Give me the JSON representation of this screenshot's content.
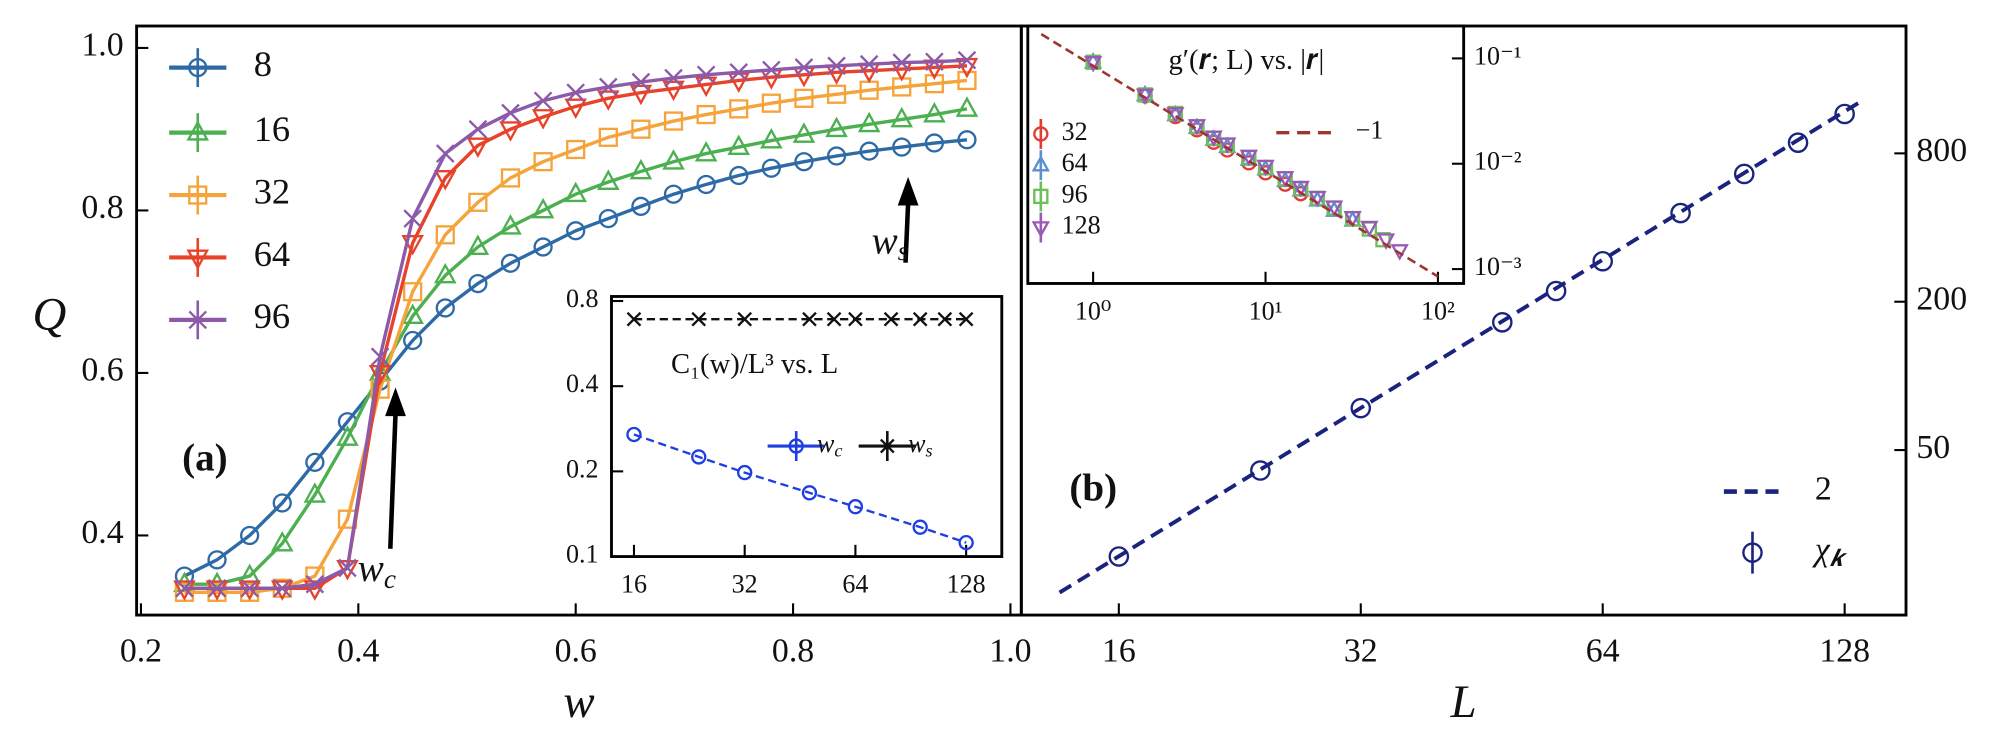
{
  "chart_data": [
    {
      "type": "line",
      "xlabel": "w",
      "ylabel": "Q",
      "xlim": [
        0.196,
        1.01
      ],
      "ylim": [
        0.302,
        1.027
      ],
      "xscale": "linear",
      "yscale": "linear",
      "yaxis": "left",
      "xticks": [
        0.2,
        0.4,
        0.6,
        0.8,
        {
          "value": 1,
          "label": "1.0"
        }
      ],
      "yticks": [
        0.4,
        0.6,
        0.8,
        {
          "value": 1,
          "label": "1.0"
        }
      ],
      "legend": "upper left",
      "x": [
        0.24,
        0.27,
        0.3,
        0.33,
        0.36,
        0.39,
        0.42,
        0.45,
        0.48,
        0.51,
        0.54,
        0.57,
        0.6,
        0.63,
        0.66,
        0.69,
        0.72,
        0.75,
        0.78,
        0.81,
        0.84,
        0.87,
        0.9,
        0.93,
        0.96
      ],
      "series": [
        {
          "name": "8",
          "color": "#2e6aa6",
          "marker": "o",
          "line": "solid",
          "values": [
            0.35,
            0.37,
            0.4,
            0.44,
            0.49,
            0.54,
            0.59,
            0.64,
            0.68,
            0.71,
            0.735,
            0.755,
            0.775,
            0.79,
            0.805,
            0.82,
            0.832,
            0.843,
            0.852,
            0.86,
            0.867,
            0.873,
            0.878,
            0.883,
            0.887
          ]
        },
        {
          "name": "16",
          "color": "#4caf50",
          "marker": "^",
          "line": "solid",
          "values": [
            0.34,
            0.34,
            0.35,
            0.39,
            0.45,
            0.52,
            0.6,
            0.67,
            0.72,
            0.755,
            0.78,
            0.8,
            0.82,
            0.835,
            0.848,
            0.86,
            0.87,
            0.878,
            0.886,
            0.893,
            0.9,
            0.906,
            0.912,
            0.918,
            0.925
          ]
        },
        {
          "name": "32",
          "color": "#f5a43c",
          "marker": "s",
          "line": "solid",
          "values": [
            0.33,
            0.33,
            0.33,
            0.335,
            0.35,
            0.42,
            0.58,
            0.7,
            0.77,
            0.81,
            0.84,
            0.86,
            0.875,
            0.89,
            0.9,
            0.91,
            0.918,
            0.925,
            0.932,
            0.938,
            0.943,
            0.948,
            0.952,
            0.956,
            0.96
          ]
        },
        {
          "name": "64",
          "color": "#e8432a",
          "marker": "v",
          "line": "solid",
          "values": [
            0.335,
            0.335,
            0.335,
            0.335,
            0.335,
            0.36,
            0.6,
            0.76,
            0.84,
            0.88,
            0.9,
            0.915,
            0.928,
            0.938,
            0.945,
            0.95,
            0.955,
            0.96,
            0.964,
            0.967,
            0.97,
            0.972,
            0.974,
            0.976,
            0.978
          ]
        },
        {
          "name": "96",
          "color": "#8c5aa8",
          "marker": "x",
          "line": "solid",
          "values": [
            0.335,
            0.335,
            0.335,
            0.335,
            0.34,
            0.36,
            0.62,
            0.79,
            0.87,
            0.9,
            0.92,
            0.935,
            0.945,
            0.952,
            0.958,
            0.963,
            0.967,
            0.97,
            0.973,
            0.976,
            0.978,
            0.98,
            0.982,
            0.983,
            0.985
          ]
        }
      ],
      "annotations": [
        {
          "text": "(a)"
        },
        {
          "base": "w",
          "sub": "c"
        },
        {
          "base": "w",
          "sub": "s"
        }
      ]
    },
    {
      "type": "line",
      "title": "C₁(w)/L³ vs. L",
      "xlim": [
        13.9,
        160
      ],
      "ylim": [
        0.1,
        0.83
      ],
      "xscale": "log",
      "yscale": "log",
      "yaxis": "left",
      "xticks": [
        16,
        32,
        64,
        128
      ],
      "yticks": [
        0.1,
        0.2,
        0.4,
        0.8
      ],
      "legend": "center",
      "series": [
        {
          "name": {
            "base": "w",
            "sub": "c"
          },
          "color": "#1f3fe0",
          "marker": "o",
          "line": "dashed",
          "x": [
            16,
            24,
            32,
            48,
            64,
            96,
            128
          ],
          "values": [
            0.27,
            0.225,
            0.198,
            0.168,
            0.15,
            0.127,
            0.112
          ]
        },
        {
          "name": {
            "base": "w",
            "sub": "s"
          },
          "color": "#111111",
          "marker": "x",
          "line": "dashed",
          "x": [
            16,
            24,
            32,
            48,
            56,
            64,
            80,
            96,
            112,
            128
          ],
          "values": [
            0.69,
            0.69,
            0.69,
            0.69,
            0.69,
            0.69,
            0.69,
            0.69,
            0.69,
            0.69
          ]
        }
      ]
    },
    {
      "type": "line",
      "xlabel": "L",
      "xlim": [
        12.1,
        152.6
      ],
      "ylim": [
        10.7,
        2630
      ],
      "xscale": "log",
      "yscale": "log",
      "yaxis": "right",
      "xticks": [
        16,
        32,
        64,
        128
      ],
      "yticks": [
        50,
        200,
        800
      ],
      "legend": "lower right",
      "series": [
        {
          "name": "2",
          "color": "#1a237e",
          "marker": "none",
          "line": "dashed",
          "x": [
            13.5,
            135
          ],
          "values": [
            13.2,
            1317
          ]
        },
        {
          "name": {
            "base": "χ",
            "sub": "𝒌"
          },
          "color": "#1a237e",
          "marker": "o",
          "line": "none",
          "x": [
            16,
            24,
            32,
            48,
            56,
            64,
            80,
            96,
            112,
            128
          ],
          "values": [
            18.5,
            41.3,
            74,
            165,
            221,
            292,
            458,
            660,
            884,
            1156
          ]
        }
      ],
      "annotations": [
        {
          "text": "(b)"
        }
      ]
    },
    {
      "type": "line",
      "title": "g′(𝒓; L) vs. |𝒓|",
      "xlim": [
        0.418,
        141
      ],
      "ylim": [
        0.00073,
        0.203
      ],
      "xscale": "log",
      "yscale": "log",
      "yaxis": "right",
      "xticks": [
        {
          "value": 1,
          "label": "10⁰"
        },
        {
          "value": 10,
          "label": "10¹"
        },
        {
          "value": 100,
          "label": "10²"
        }
      ],
      "yticks": [
        {
          "value": 0.001,
          "label": "10⁻³"
        },
        {
          "value": 0.01,
          "label": "10⁻²"
        },
        {
          "value": 0.1,
          "label": "10⁻¹"
        }
      ],
      "legend": "center left",
      "series": [
        {
          "name": "32",
          "color": "#e03c32",
          "marker": "o",
          "line": "none",
          "x": [
            1,
            2,
            3,
            4,
            5,
            6,
            8,
            10,
            13,
            16
          ],
          "values": [
            0.092,
            0.044,
            0.028,
            0.021,
            0.016,
            0.0135,
            0.0102,
            0.0082,
            0.0064,
            0.0052
          ]
        },
        {
          "name": "64",
          "color": "#5b8fd0",
          "marker": "^",
          "line": "none",
          "x": [
            1,
            2,
            3,
            4,
            5,
            6,
            8,
            10,
            13,
            16,
            20,
            25,
            32
          ],
          "values": [
            0.092,
            0.045,
            0.029,
            0.022,
            0.017,
            0.0145,
            0.011,
            0.0089,
            0.0069,
            0.0056,
            0.0045,
            0.0036,
            0.0029
          ]
        },
        {
          "name": "96",
          "color": "#6cbf5a",
          "marker": "s",
          "line": "none",
          "x": [
            1,
            2,
            3,
            4,
            5,
            6,
            8,
            10,
            13,
            16,
            20,
            25,
            32,
            40,
            48
          ],
          "values": [
            0.092,
            0.045,
            0.03,
            0.0225,
            0.0175,
            0.015,
            0.0115,
            0.0092,
            0.0072,
            0.0058,
            0.0047,
            0.0038,
            0.003,
            0.0024,
            0.0019
          ]
        },
        {
          "name": "128",
          "color": "#9b59b6",
          "marker": "v",
          "line": "none",
          "x": [
            1,
            2,
            3,
            4,
            5,
            6,
            8,
            10,
            13,
            16,
            20,
            25,
            32,
            40,
            50,
            60
          ],
          "values": [
            0.092,
            0.045,
            0.03,
            0.023,
            0.018,
            0.0155,
            0.0118,
            0.0095,
            0.0074,
            0.006,
            0.0048,
            0.0039,
            0.0031,
            0.0025,
            0.0019,
            0.0015
          ]
        },
        {
          "name": "−1",
          "color": "#a0342e",
          "marker": "none",
          "line": "dashed",
          "x": [
            0.5,
            100
          ],
          "values": [
            0.17,
            0.00085
          ]
        }
      ]
    }
  ]
}
